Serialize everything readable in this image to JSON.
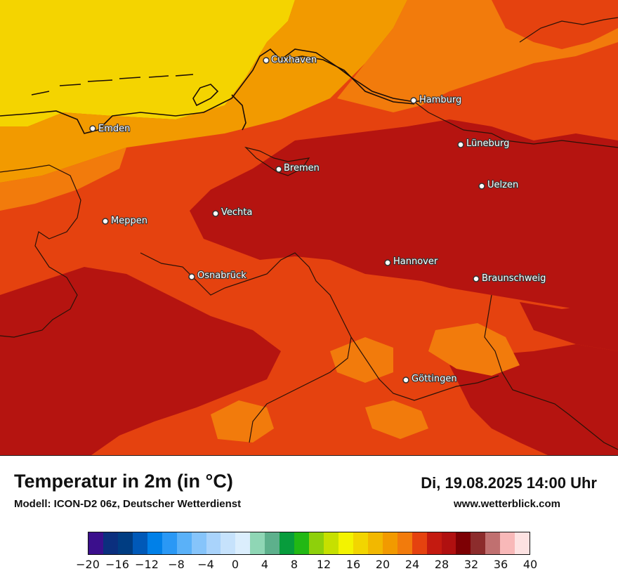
{
  "map": {
    "cities": [
      {
        "name": "Cuxhaven",
        "label": "Cuxhaven"
      },
      {
        "name": "Hamburg",
        "label": "Hamburg"
      },
      {
        "name": "Emden",
        "label": "Emden"
      },
      {
        "name": "Lüneburg",
        "label": "Lüneburg"
      },
      {
        "name": "Bremen",
        "label": "Bremen"
      },
      {
        "name": "Uelzen",
        "label": "Uelzen"
      },
      {
        "name": "Vechta",
        "label": "Vechta"
      },
      {
        "name": "Meppen",
        "label": "Meppen"
      },
      {
        "name": "Hannover",
        "label": "Hannover"
      },
      {
        "name": "Osnabrück",
        "label": "Osnabrück"
      },
      {
        "name": "Braunschweig",
        "label": "Braunschweig"
      },
      {
        "name": "Göttingen",
        "label": "Göttingen"
      }
    ]
  },
  "header": {
    "title": "Temperatur in 2m (in °C)",
    "subtitle": "Modell: ICON-D2 06z, Deutscher Wetterdienst",
    "datetime": "Di, 19.08.2025 14:00 Uhr",
    "website": "www.wetterblick.com"
  },
  "legend": {
    "min": -20,
    "max": 40,
    "tick_labels": [
      "−20",
      "−16",
      "−12",
      "−8",
      "−4",
      "0",
      "4",
      "8",
      "12",
      "16",
      "20",
      "24",
      "28",
      "32",
      "36",
      "40"
    ],
    "colors": [
      "#3b0f8c",
      "#0b2f7e",
      "#003d82",
      "#0059b8",
      "#0080e8",
      "#2a98f5",
      "#5ab1f8",
      "#86c4fa",
      "#a9d3fb",
      "#c6e2fc",
      "#dbeefd",
      "#8fd6b5",
      "#5db08c",
      "#079c3c",
      "#22b814",
      "#8ed00b",
      "#c6e000",
      "#f3f300",
      "#f2d500",
      "#f2b800",
      "#f29a00",
      "#f27b0c",
      "#e5420f",
      "#c41a10",
      "#b01010",
      "#7d0004",
      "#8c2c2c",
      "#c07070",
      "#f8b8b8",
      "#fde2e2"
    ]
  }
}
